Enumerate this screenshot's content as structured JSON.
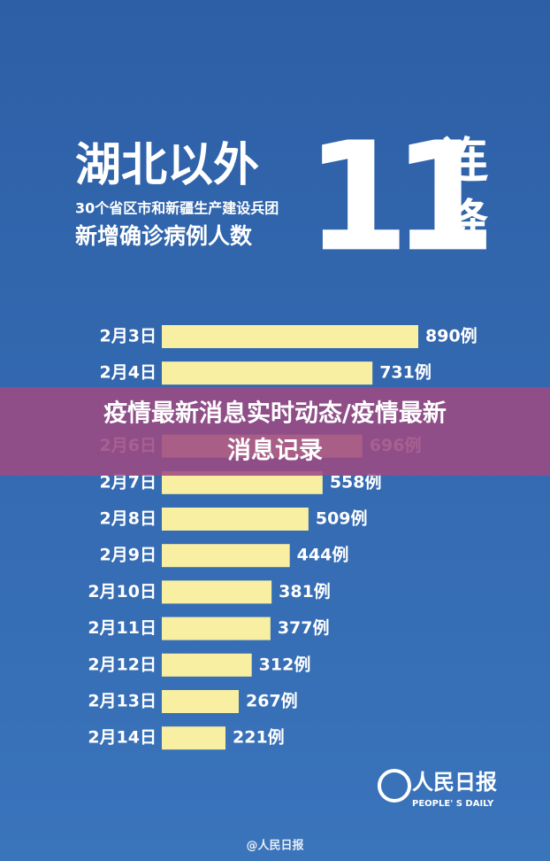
{
  "chart_data": {
    "type": "bar",
    "orientation": "horizontal",
    "color": "#f8efa3",
    "title": "湖北以外",
    "subtitle": "30个省区市和新疆生产建设兵团",
    "subtitle2": "新增确诊病例人数",
    "headline_number": "11",
    "headline_text": [
      "连",
      "降"
    ],
    "categories": [
      "2月3日",
      "2月4日",
      null,
      "2月6日",
      "2月7日",
      "2月8日",
      "2月9日",
      "2月10日",
      "2月11日",
      "2月12日",
      "2月13日",
      "2月14日"
    ],
    "values": [
      890,
      731,
      null,
      696,
      558,
      509,
      444,
      381,
      377,
      312,
      267,
      221
    ],
    "value_labels": [
      "890例",
      "731例",
      null,
      "696例",
      "558例",
      "509例",
      "444例",
      "381例",
      "377例",
      "312例",
      "267例",
      "221例"
    ]
  },
  "banner": {
    "text_line1": "疫情最新消息实时动态/疫情最新",
    "text_line2": "消息记录"
  },
  "logo": {
    "name": "人民日报",
    "english": "PEOPLE' S DAILY"
  },
  "footer": "@人民日报"
}
